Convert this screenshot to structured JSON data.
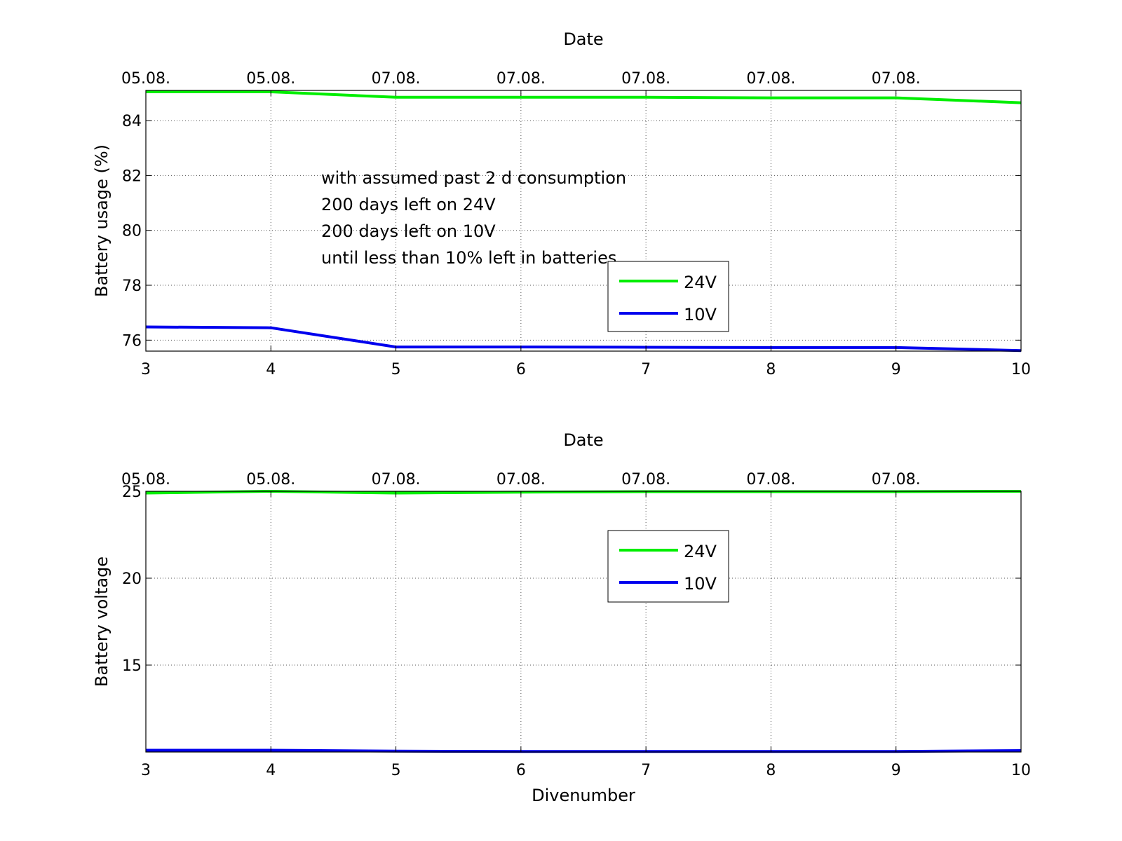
{
  "chart_data": [
    {
      "type": "line",
      "title": "Date",
      "xlabel": "",
      "ylabel": "Battery usage (%)",
      "xlim": [
        3,
        10
      ],
      "ylim": [
        75.6,
        85.1
      ],
      "x_ticks": [
        3,
        4,
        5,
        6,
        7,
        8,
        9,
        10
      ],
      "y_ticks": [
        76,
        78,
        80,
        82,
        84
      ],
      "top_ticks": [
        "05.08.",
        "05.08.",
        "07.08.",
        "07.08.",
        "07.08.",
        "07.08.",
        "07.08."
      ],
      "grid": true,
      "legend_position": "center",
      "annotation": [
        "with assumed past 2 d consumption",
        "200 days left on 24V",
        "200 days left on 10V",
        "until less than 10% left in batteries"
      ],
      "series": [
        {
          "name": "24V",
          "color": "#00ee00",
          "x": [
            3,
            4,
            5,
            6,
            7,
            8,
            9,
            10
          ],
          "y": [
            85.05,
            85.05,
            84.85,
            84.85,
            84.85,
            84.83,
            84.83,
            84.65
          ]
        },
        {
          "name": "10V",
          "color": "#0000ee",
          "x": [
            3,
            4,
            5,
            6,
            7,
            8,
            9,
            10
          ],
          "y": [
            76.48,
            76.45,
            75.75,
            75.75,
            75.74,
            75.73,
            75.73,
            75.62
          ]
        }
      ]
    },
    {
      "type": "line",
      "title": "Date",
      "xlabel": "Divenumber",
      "ylabel": "Battery voltage",
      "xlim": [
        3,
        10
      ],
      "ylim": [
        10,
        25
      ],
      "x_ticks": [
        3,
        4,
        5,
        6,
        7,
        8,
        9,
        10
      ],
      "y_ticks": [
        15,
        20,
        25
      ],
      "top_ticks": [
        "05.08.",
        "05.08.",
        "07.08.",
        "07.08.",
        "07.08.",
        "07.08.",
        "07.08."
      ],
      "grid": true,
      "legend_position": "top-center",
      "series": [
        {
          "name": "24V",
          "color": "#00ee00",
          "x": [
            3,
            4,
            5,
            6,
            7,
            8,
            9,
            10
          ],
          "y": [
            24.9,
            25.0,
            24.9,
            24.95,
            24.98,
            24.98,
            24.98,
            25.0
          ]
        },
        {
          "name": "10V",
          "color": "#0000ee",
          "x": [
            3,
            4,
            5,
            6,
            7,
            8,
            9,
            10
          ],
          "y": [
            10.1,
            10.1,
            10.05,
            10.03,
            10.03,
            10.03,
            10.03,
            10.08
          ]
        }
      ]
    }
  ]
}
